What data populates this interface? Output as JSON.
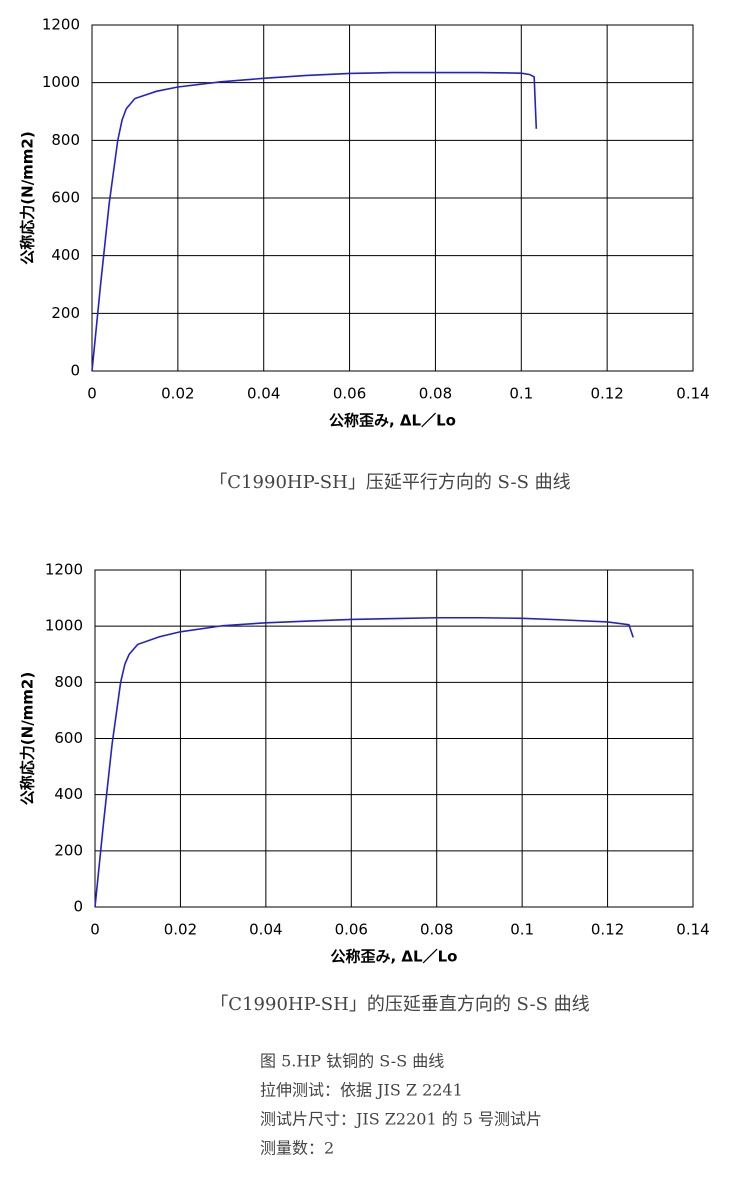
{
  "chart_data": [
    {
      "type": "line",
      "title": "「C1990HP-SH」压延平行方向的 S-S 曲线",
      "xlabel": "公称歪み, ΔL／Lo",
      "ylabel": "公称応力(N/mm2)",
      "xlim": [
        0,
        0.14
      ],
      "xticks": [
        0,
        0.02,
        0.04,
        0.06,
        0.08,
        0.1,
        0.12,
        0.14
      ],
      "ylim": [
        0,
        1200
      ],
      "yticks": [
        0,
        200,
        400,
        600,
        800,
        1000,
        1200
      ],
      "grid": true,
      "color": "#2222cc",
      "x": [
        0,
        0.002,
        0.004,
        0.006,
        0.007,
        0.008,
        0.01,
        0.015,
        0.02,
        0.03,
        0.04,
        0.05,
        0.06,
        0.07,
        0.08,
        0.09,
        0.1,
        0.102,
        0.103,
        0.1035
      ],
      "values": [
        0,
        300,
        580,
        800,
        870,
        910,
        945,
        970,
        985,
        1003,
        1015,
        1025,
        1032,
        1035,
        1035,
        1035,
        1033,
        1028,
        1020,
        840
      ]
    },
    {
      "type": "line",
      "title": "「C1990HP-SH」的压延垂直方向的 S-S 曲线",
      "xlabel": "公称歪み, ΔL／Lo",
      "ylabel": "公称応力(N/mm2)",
      "xlim": [
        0,
        0.14
      ],
      "xticks": [
        0,
        0.02,
        0.04,
        0.06,
        0.08,
        0.1,
        0.12,
        0.14
      ],
      "ylim": [
        0,
        1200
      ],
      "yticks": [
        0,
        200,
        400,
        600,
        800,
        1000,
        1200
      ],
      "grid": true,
      "color": "#2222cc",
      "x": [
        0,
        0.002,
        0.004,
        0.006,
        0.007,
        0.008,
        0.01,
        0.015,
        0.02,
        0.03,
        0.04,
        0.05,
        0.06,
        0.07,
        0.08,
        0.09,
        0.1,
        0.11,
        0.12,
        0.125,
        0.126
      ],
      "values": [
        0,
        300,
        580,
        800,
        865,
        900,
        935,
        962,
        980,
        1002,
        1012,
        1018,
        1024,
        1027,
        1030,
        1030,
        1028,
        1022,
        1015,
        1005,
        960
      ]
    }
  ],
  "notes": [
    "图 5.HP 钛铜的 S-S 曲线",
    "拉伸测试：依据 JIS Z 2241",
    "测试片尺寸：JIS Z2201 的 5 号测试片",
    "测量数：2"
  ]
}
